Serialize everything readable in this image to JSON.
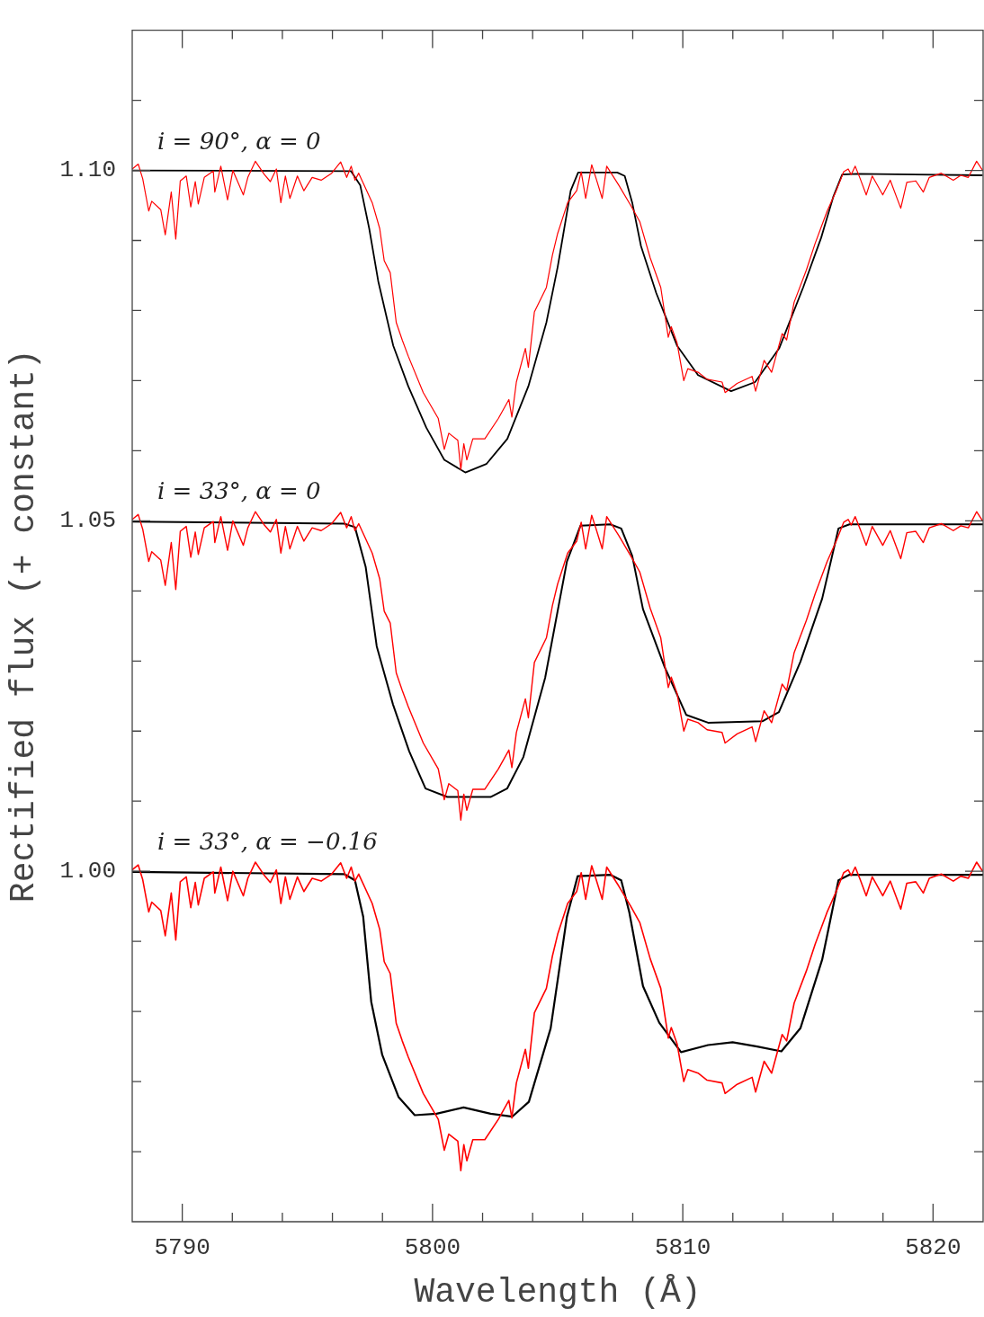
{
  "chart_data": {
    "type": "line",
    "xlabel": "Wavelength (Å)",
    "ylabel": "Rectified flux (+ constant)",
    "xlim": [
      5788,
      5822
    ],
    "ylim": [
      0.95,
      1.12
    ],
    "xticks": [
      {
        "value": 5790,
        "label": "5790"
      },
      {
        "value": 5792,
        "label": null
      },
      {
        "value": 5794,
        "label": null
      },
      {
        "value": 5796,
        "label": null
      },
      {
        "value": 5798,
        "label": null
      },
      {
        "value": 5800,
        "label": "5800"
      },
      {
        "value": 5802,
        "label": null
      },
      {
        "value": 5804,
        "label": null
      },
      {
        "value": 5806,
        "label": null
      },
      {
        "value": 5808,
        "label": null
      },
      {
        "value": 5810,
        "label": "5810"
      },
      {
        "value": 5812,
        "label": null
      },
      {
        "value": 5814,
        "label": null
      },
      {
        "value": 5816,
        "label": null
      },
      {
        "value": 5818,
        "label": null
      },
      {
        "value": 5820,
        "label": "5820"
      }
    ],
    "yticks": [
      {
        "value": 0.96,
        "label": null
      },
      {
        "value": 0.97,
        "label": null
      },
      {
        "value": 0.98,
        "label": null
      },
      {
        "value": 0.99,
        "label": null
      },
      {
        "value": 1.0,
        "label": "1.00"
      },
      {
        "value": 1.01,
        "label": null
      },
      {
        "value": 1.02,
        "label": null
      },
      {
        "value": 1.03,
        "label": null
      },
      {
        "value": 1.04,
        "label": null
      },
      {
        "value": 1.05,
        "label": "1.05"
      },
      {
        "value": 1.06,
        "label": null
      },
      {
        "value": 1.07,
        "label": null
      },
      {
        "value": 1.08,
        "label": null
      },
      {
        "value": 1.09,
        "label": null
      },
      {
        "value": 1.1,
        "label": "1.10"
      },
      {
        "value": 1.11,
        "label": null
      }
    ],
    "annotations": [
      "i = 90°, α = 0",
      "i = 33°, α = 0",
      "i = 33°, α = −0.16"
    ],
    "series": [
      {
        "color": "#ff0000",
        "x": [
          5788.0,
          5788.24,
          5788.42,
          5788.66,
          5788.78,
          5789.14,
          5789.32,
          5789.56,
          5789.74,
          5789.92,
          5790.16,
          5790.34,
          5790.52,
          5790.64,
          5790.88,
          5791.24,
          5791.3,
          5791.54,
          5791.81,
          5792.02,
          5792.44,
          5792.62,
          5792.92,
          5793.28,
          5793.52,
          5793.76,
          5793.94,
          5794.12,
          5794.3,
          5794.6,
          5794.86,
          5795.19,
          5795.55,
          5795.97,
          5796.33,
          5796.57,
          5796.75,
          5796.9,
          5797.05,
          5797.59,
          5797.89,
          5798.07,
          5798.31,
          5798.55,
          5798.79,
          5799.03,
          5799.63,
          5800.23,
          5800.47,
          5800.65,
          5801.01,
          5801.13,
          5801.25,
          5801.37,
          5801.61,
          5802.09,
          5802.63,
          5803.05,
          5803.17,
          5803.35,
          5803.71,
          5803.83,
          5804.07,
          5804.55,
          5804.79,
          5805.0,
          5805.4,
          5805.76,
          5805.94,
          5806.12,
          5806.36,
          5806.54,
          5806.78,
          5806.96,
          5807.44,
          5807.92,
          5808.28,
          5808.7,
          5809.12,
          5809.42,
          5809.54,
          5809.77,
          5810.04,
          5810.2,
          5810.61,
          5810.97,
          5811.57,
          5811.69,
          5812.17,
          5812.77,
          5812.91,
          5813.25,
          5813.55,
          5813.97,
          5814.15,
          5814.45,
          5814.94,
          5815.29,
          5815.77,
          5816.13,
          5816.43,
          5816.61,
          5816.73,
          5816.89,
          5817.09,
          5817.33,
          5817.57,
          5817.99,
          5818.29,
          5818.71,
          5818.95,
          5819.31,
          5819.61,
          5819.85,
          5820.33,
          5820.81,
          5821.11,
          5821.41,
          5821.74,
          5821.98
        ],
        "values": [
          1.1002,
          1.1009,
          1.0988,
          1.0942,
          1.0956,
          1.0944,
          1.0908,
          1.0969,
          1.0902,
          1.0985,
          1.0992,
          1.0948,
          1.0984,
          1.0952,
          1.099,
          1.0999,
          1.0969,
          1.1006,
          1.0958,
          1.1,
          1.0965,
          1.099,
          1.1013,
          1.0994,
          1.0984,
          1.1002,
          1.0954,
          1.0992,
          1.096,
          1.0992,
          1.0971,
          1.099,
          1.0986,
          1.0996,
          1.1012,
          1.099,
          1.1006,
          1.0986,
          1.0996,
          1.0954,
          1.0917,
          1.0871,
          1.0854,
          1.0783,
          1.0758,
          1.0735,
          1.0683,
          1.0646,
          1.0602,
          1.0625,
          1.0615,
          1.0573,
          1.061,
          1.0587,
          1.0617,
          1.0617,
          1.0646,
          1.0673,
          1.0648,
          1.0698,
          1.0746,
          1.0719,
          1.0798,
          1.0833,
          1.0879,
          1.091,
          1.0954,
          1.0971,
          1.0998,
          1.096,
          1.1008,
          1.0988,
          1.096,
          1.1006,
          1.0979,
          1.095,
          1.0927,
          1.0875,
          1.0833,
          1.0762,
          1.0777,
          1.0754,
          1.07,
          1.0717,
          1.0712,
          1.0702,
          1.0698,
          1.0683,
          1.0696,
          1.0706,
          1.0685,
          1.0729,
          1.0712,
          1.0767,
          1.0758,
          1.0812,
          1.0858,
          1.0896,
          1.0942,
          1.0971,
          1.0998,
          1.1002,
          1.0994,
          1.1006,
          1.0988,
          1.0965,
          1.0992,
          1.0965,
          1.0986,
          1.0946,
          1.0983,
          1.0985,
          1.0969,
          1.099,
          1.0996,
          1.0986,
          1.0993,
          1.099,
          1.1013,
          1.1
        ]
      },
      {
        "color": "#ff0000",
        "x": [
          5788.0,
          5788.24,
          5788.42,
          5788.66,
          5788.78,
          5789.14,
          5789.32,
          5789.56,
          5789.74,
          5789.92,
          5790.16,
          5790.34,
          5790.52,
          5790.64,
          5790.88,
          5791.24,
          5791.3,
          5791.54,
          5791.81,
          5792.02,
          5792.44,
          5792.62,
          5792.92,
          5793.28,
          5793.52,
          5793.76,
          5793.94,
          5794.12,
          5794.3,
          5794.6,
          5794.86,
          5795.19,
          5795.55,
          5795.97,
          5796.33,
          5796.57,
          5796.75,
          5796.9,
          5797.05,
          5797.59,
          5797.89,
          5798.07,
          5798.31,
          5798.55,
          5798.79,
          5799.03,
          5799.63,
          5800.23,
          5800.47,
          5800.65,
          5801.01,
          5801.13,
          5801.25,
          5801.37,
          5801.61,
          5802.09,
          5802.63,
          5803.05,
          5803.17,
          5803.35,
          5803.71,
          5803.83,
          5804.07,
          5804.55,
          5804.79,
          5805.0,
          5805.4,
          5805.76,
          5805.94,
          5806.12,
          5806.36,
          5806.54,
          5806.78,
          5806.96,
          5807.44,
          5807.92,
          5808.28,
          5808.7,
          5809.12,
          5809.42,
          5809.54,
          5809.77,
          5810.04,
          5810.2,
          5810.61,
          5810.97,
          5811.57,
          5811.69,
          5812.17,
          5812.77,
          5812.91,
          5813.25,
          5813.55,
          5813.97,
          5814.15,
          5814.45,
          5814.94,
          5815.29,
          5815.77,
          5816.13,
          5816.43,
          5816.61,
          5816.73,
          5816.89,
          5817.09,
          5817.33,
          5817.57,
          5817.99,
          5818.29,
          5818.71,
          5818.95,
          5819.31,
          5819.61,
          5819.85,
          5820.33,
          5820.81,
          5821.11,
          5821.41,
          5821.74,
          5821.98
        ],
        "values": [
          1.0502,
          1.0509,
          1.0488,
          1.0442,
          1.0456,
          1.0444,
          1.0408,
          1.0469,
          1.0402,
          1.0485,
          1.0492,
          1.0448,
          1.0484,
          1.0452,
          1.049,
          1.0499,
          1.0469,
          1.0506,
          1.0458,
          1.05,
          1.0465,
          1.049,
          1.0513,
          1.0494,
          1.0484,
          1.0502,
          1.0454,
          1.0492,
          1.046,
          1.0492,
          1.0471,
          1.049,
          1.0486,
          1.0496,
          1.0512,
          1.049,
          1.0506,
          1.0486,
          1.0496,
          1.0454,
          1.0417,
          1.0371,
          1.0354,
          1.0283,
          1.0258,
          1.0235,
          1.0183,
          1.0146,
          1.0102,
          1.0125,
          1.0115,
          1.0073,
          1.011,
          1.0087,
          1.0117,
          1.0117,
          1.0146,
          1.0173,
          1.0148,
          1.0198,
          1.0246,
          1.0219,
          1.0298,
          1.0333,
          1.0379,
          1.041,
          1.0454,
          1.0471,
          1.0498,
          1.046,
          1.0508,
          1.0488,
          1.046,
          1.0506,
          1.0479,
          1.045,
          1.0427,
          1.0375,
          1.0333,
          1.0262,
          1.0277,
          1.0254,
          1.02,
          1.0217,
          1.0212,
          1.0202,
          1.0198,
          1.0183,
          1.0196,
          1.0206,
          1.0185,
          1.0229,
          1.0212,
          1.0267,
          1.0258,
          1.0312,
          1.0358,
          1.0396,
          1.0442,
          1.0471,
          1.0498,
          1.0502,
          1.0494,
          1.0506,
          1.0488,
          1.0465,
          1.0492,
          1.0465,
          1.0486,
          1.0446,
          1.0483,
          1.0485,
          1.0469,
          1.049,
          1.0496,
          1.0486,
          1.0493,
          1.049,
          1.0513,
          1.05
        ]
      },
      {
        "color": "#ff0000",
        "x": [
          5788.0,
          5788.24,
          5788.42,
          5788.66,
          5788.78,
          5789.14,
          5789.32,
          5789.56,
          5789.74,
          5789.92,
          5790.16,
          5790.34,
          5790.52,
          5790.64,
          5790.88,
          5791.24,
          5791.3,
          5791.54,
          5791.81,
          5792.02,
          5792.44,
          5792.62,
          5792.92,
          5793.28,
          5793.52,
          5793.76,
          5793.94,
          5794.12,
          5794.3,
          5794.6,
          5794.86,
          5795.19,
          5795.55,
          5795.97,
          5796.33,
          5796.57,
          5796.75,
          5796.9,
          5797.05,
          5797.59,
          5797.89,
          5798.07,
          5798.31,
          5798.55,
          5798.79,
          5799.03,
          5799.63,
          5800.23,
          5800.47,
          5800.65,
          5801.01,
          5801.13,
          5801.25,
          5801.37,
          5801.61,
          5802.09,
          5802.63,
          5803.05,
          5803.17,
          5803.35,
          5803.71,
          5803.83,
          5804.07,
          5804.55,
          5804.79,
          5805.0,
          5805.4,
          5805.76,
          5805.94,
          5806.12,
          5806.36,
          5806.54,
          5806.78,
          5806.96,
          5807.44,
          5807.92,
          5808.28,
          5808.7,
          5809.12,
          5809.42,
          5809.54,
          5809.77,
          5810.04,
          5810.2,
          5810.61,
          5810.97,
          5811.57,
          5811.69,
          5812.17,
          5812.77,
          5812.91,
          5813.25,
          5813.55,
          5813.97,
          5814.15,
          5814.45,
          5814.94,
          5815.29,
          5815.77,
          5816.13,
          5816.43,
          5816.61,
          5816.73,
          5816.89,
          5817.09,
          5817.33,
          5817.57,
          5817.99,
          5818.29,
          5818.71,
          5818.95,
          5819.31,
          5819.61,
          5819.85,
          5820.33,
          5820.81,
          5821.11,
          5821.41,
          5821.74,
          5821.98
        ],
        "values": [
          1.0002,
          1.0009,
          0.9988,
          0.9942,
          0.9956,
          0.9944,
          0.9908,
          0.9969,
          0.9902,
          0.9985,
          0.9992,
          0.9948,
          0.9984,
          0.9952,
          0.999,
          0.9999,
          0.9969,
          1.0006,
          0.9958,
          1.0,
          0.9965,
          0.999,
          1.0013,
          0.9994,
          0.9984,
          1.0002,
          0.9954,
          0.9992,
          0.996,
          0.9992,
          0.9971,
          0.999,
          0.9986,
          0.9996,
          1.0012,
          0.999,
          1.0006,
          0.9986,
          0.9996,
          0.9954,
          0.9917,
          0.9871,
          0.9854,
          0.9783,
          0.9758,
          0.9735,
          0.9683,
          0.9646,
          0.9602,
          0.9625,
          0.9615,
          0.9573,
          0.961,
          0.9587,
          0.9617,
          0.9617,
          0.9646,
          0.9673,
          0.9648,
          0.9698,
          0.9746,
          0.9719,
          0.9798,
          0.9833,
          0.9879,
          0.991,
          0.9954,
          0.9971,
          0.9998,
          0.996,
          1.0008,
          0.9988,
          0.996,
          1.0006,
          0.9979,
          0.995,
          0.9927,
          0.9875,
          0.9833,
          0.9762,
          0.9777,
          0.9754,
          0.97,
          0.9717,
          0.9712,
          0.9702,
          0.9698,
          0.9683,
          0.9696,
          0.9706,
          0.9685,
          0.9729,
          0.9712,
          0.9767,
          0.9758,
          0.9812,
          0.9858,
          0.9896,
          0.9942,
          0.9971,
          0.9998,
          1.0002,
          0.9994,
          1.0006,
          0.9988,
          0.9965,
          0.9992,
          0.9965,
          0.9986,
          0.9946,
          0.9983,
          0.9985,
          0.9969,
          0.999,
          0.9996,
          0.9986,
          0.9993,
          0.999,
          1.0013,
          1.0
        ]
      },
      {
        "color": "#000000",
        "x": [
          5788.0,
          5796.74,
          5797.11,
          5797.47,
          5797.83,
          5798.43,
          5799.03,
          5799.75,
          5800.47,
          5801.31,
          5802.15,
          5802.99,
          5803.83,
          5804.55,
          5805.0,
          5805.22,
          5805.52,
          5805.82,
          5807.38,
          5807.68,
          5807.98,
          5808.33,
          5808.94,
          5809.77,
          5810.61,
          5811.93,
          5812.89,
          5813.85,
          5814.81,
          5815.53,
          5816.01,
          5816.37,
          5816.97,
          5821.98
        ],
        "values": [
          1.1,
          1.0999,
          1.0979,
          1.0917,
          1.0842,
          1.075,
          1.0692,
          1.0633,
          1.0587,
          1.0569,
          1.0581,
          1.0617,
          1.0692,
          1.0783,
          1.0862,
          1.0908,
          1.0971,
          1.0997,
          1.0997,
          1.0992,
          1.0954,
          1.0892,
          1.0825,
          1.075,
          1.0708,
          1.0685,
          1.0698,
          1.0746,
          1.0833,
          1.0904,
          1.0962,
          1.0994,
          1.0995,
          1.0993
        ]
      },
      {
        "color": "#000000",
        "x": [
          5788.0,
          5796.47,
          5796.9,
          5797.33,
          5797.77,
          5798.42,
          5799.07,
          5799.72,
          5800.59,
          5802.32,
          5802.98,
          5803.63,
          5804.5,
          5805.37,
          5805.91,
          5807.1,
          5807.54,
          5807.98,
          5808.41,
          5809.28,
          5810.14,
          5811.01,
          5813.18,
          5813.84,
          5814.7,
          5815.57,
          5816.22,
          5816.66,
          5822.0
        ],
        "values": [
          1.0499,
          1.0496,
          1.0491,
          1.0434,
          1.0321,
          1.0238,
          1.0171,
          1.0118,
          1.0106,
          1.0106,
          1.0118,
          1.0163,
          1.0276,
          1.0442,
          1.0493,
          1.0495,
          1.0489,
          1.045,
          1.0374,
          1.0291,
          1.0223,
          1.0212,
          1.0214,
          1.0227,
          1.0299,
          1.0389,
          1.0489,
          1.0495,
          1.0495
        ]
      },
      {
        "color": "#000000",
        "x": [
          5788.0,
          5796.47,
          5796.9,
          5797.23,
          5797.55,
          5797.99,
          5798.64,
          5799.29,
          5800.16,
          5801.24,
          5802.32,
          5803.19,
          5803.85,
          5804.72,
          5805.37,
          5805.8,
          5807.1,
          5807.54,
          5807.86,
          5808.41,
          5809.06,
          5809.93,
          5811.01,
          5811.99,
          5812.97,
          5813.94,
          5814.7,
          5815.57,
          5816.22,
          5816.66,
          5822.0
        ],
        "values": [
          0.9999,
          0.9996,
          0.9987,
          0.9935,
          0.9814,
          0.9738,
          0.9678,
          0.9652,
          0.9654,
          0.9663,
          0.9654,
          0.965,
          0.9671,
          0.9776,
          0.9935,
          0.9993,
          0.9995,
          0.9987,
          0.9942,
          0.9836,
          0.9784,
          0.9742,
          0.9752,
          0.9756,
          0.975,
          0.9743,
          0.9776,
          0.9874,
          0.9987,
          0.9995,
          0.9995
        ]
      }
    ]
  }
}
